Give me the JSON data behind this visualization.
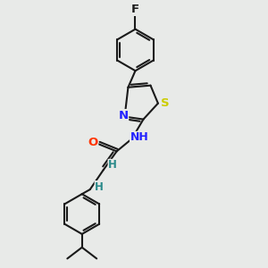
{
  "bg_color": "#e8eae8",
  "bond_color": "#1a1a1a",
  "bond_width": 1.5,
  "atom_colors": {
    "F": "#1a1a1a",
    "N": "#2222ff",
    "O": "#ff3300",
    "S": "#cccc00",
    "H": "#2a8a8a",
    "C": "#1a1a1a"
  },
  "font_size": 9.5,
  "fig_size": [
    3.0,
    3.0
  ],
  "dpi": 100
}
